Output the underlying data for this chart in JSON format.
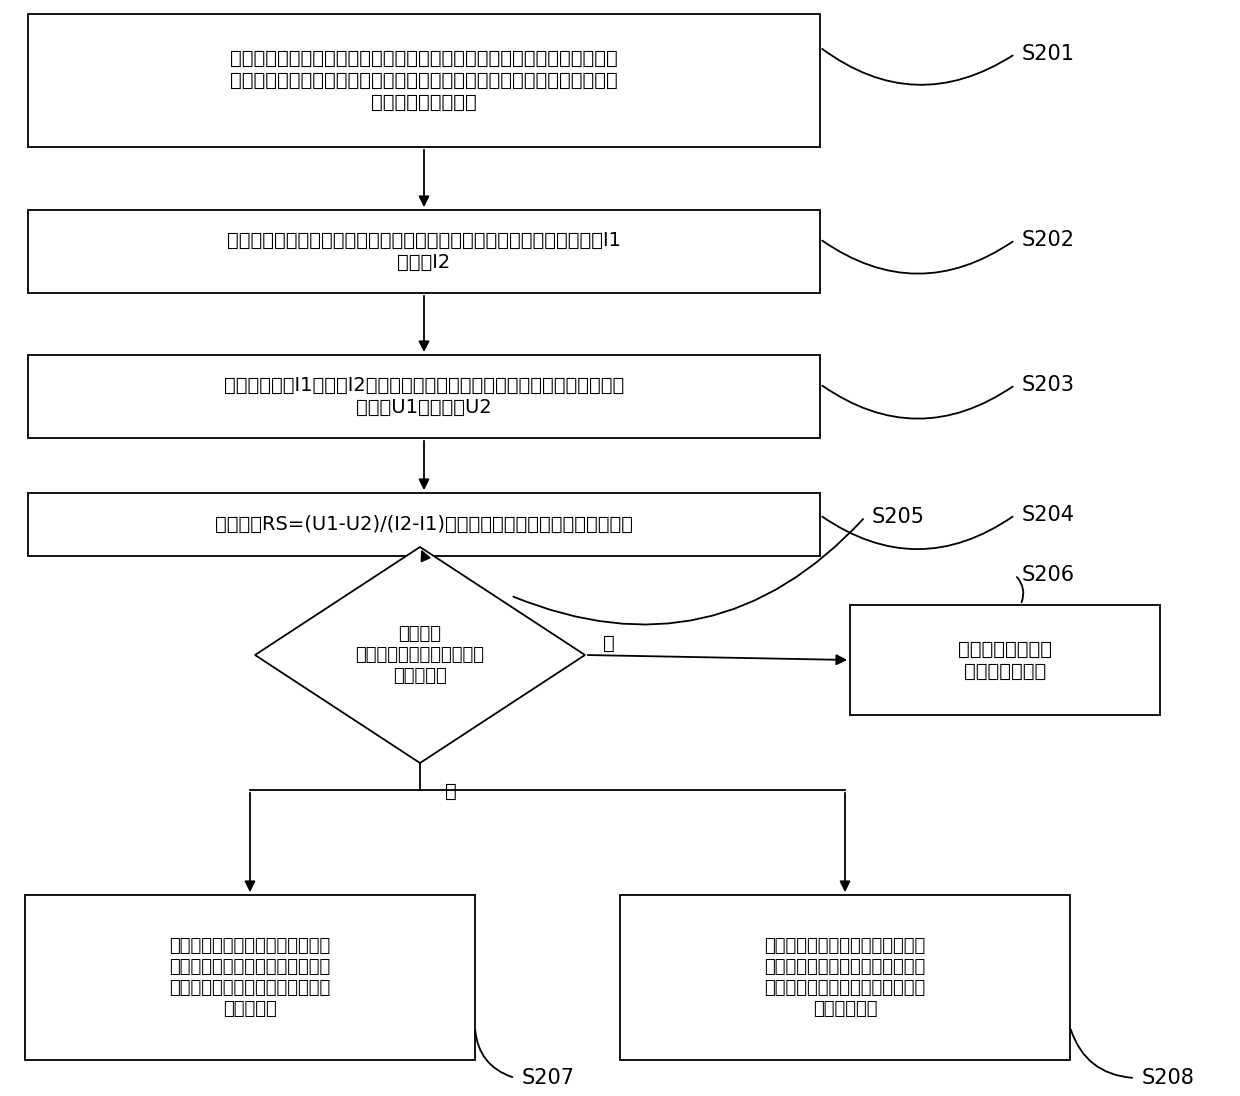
{
  "background_color": "#ffffff",
  "s201_text": "在正常连接负载的充电线路中接入恒流电子负载模块，并控制所述负载处于\n不充电的状态，所述恒流电子负载模块处于所述负载内部，连接所述负载的\n电源输入端和接地端",
  "s202_text": "所述恒流电子负载模块通过所述充电线路从供电设备吸入幅值不同的电流I1\n和电流I2",
  "s203_text": "获取所述电流I1和电流I2，以及所述恒流电子负载模块两端分别对应获取的\n电势差U1和电势差U2",
  "s204_text": "根据公式RS=(U1-U2)/(I2-I1)计算所述充电线路的等效串联阻抗值",
  "s205_text": "判断所述\n等效串联阻抗值是否大于预\n设阻抗阈值",
  "s206_text": "停止或不对所述移\n动终端进行充电",
  "s207_text": "在第一充电模式下根据所述等效串\n联阻抗值计算充电时所述充电线路\n的压降，从而设定对所述负载充电\n的充电电压",
  "s208_text": "在第二充电模式下根据所述等效串\n联阻抗值计算充电时所述充电线路\n的压降，并控制所述充电设备补偿\n提高输出电压",
  "yes_label": "是",
  "no_label": "否",
  "labels": [
    "S201",
    "S202",
    "S203",
    "S204",
    "S205",
    "S206",
    "S207",
    "S208"
  ],
  "fontsize_main": 14,
  "fontsize_label": 15
}
